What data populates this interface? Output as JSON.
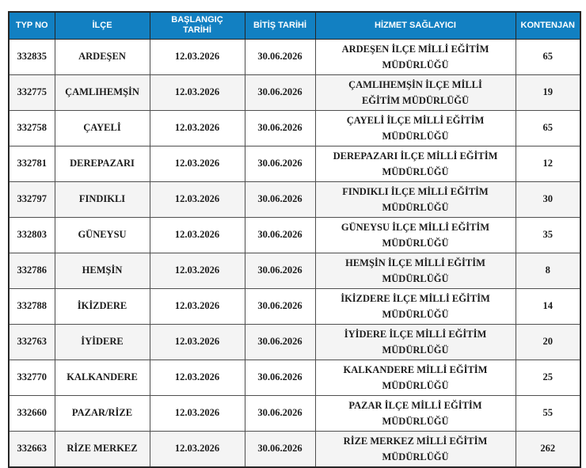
{
  "header": {
    "columns": [
      "TYP NO",
      "İLÇE",
      "BAŞLANGIÇ TARİHİ",
      "BİTİŞ TARİHİ",
      "HİZMET SAĞLAYICI",
      "KONTENJAN"
    ]
  },
  "rows": [
    {
      "typ_no": "332835",
      "ilce": "ARDEŞEN",
      "baslangic": "12.03.2026",
      "bitis": "30.06.2026",
      "saglayici": "ARDEŞEN İLÇE MİLLİ EĞİTİM MÜDÜRLÜĞÜ",
      "kontenjan": "65",
      "shaded": false
    },
    {
      "typ_no": "332775",
      "ilce": "ÇAMLIHEMŞİN",
      "baslangic": "12.03.2026",
      "bitis": "30.06.2026",
      "saglayici": "ÇAMLIHEMŞİN İLÇE MİLLİ EĞİTİM MÜDÜRLÜĞÜ",
      "kontenjan": "19",
      "shaded": true
    },
    {
      "typ_no": "332758",
      "ilce": "ÇAYELİ",
      "baslangic": "12.03.2026",
      "bitis": "30.06.2026",
      "saglayici": "ÇAYELİ İLÇE MİLLİ EĞİTİM MÜDÜRLÜĞÜ",
      "kontenjan": "65",
      "shaded": false
    },
    {
      "typ_no": "332781",
      "ilce": "DEREPAZARI",
      "baslangic": "12.03.2026",
      "bitis": "30.06.2026",
      "saglayici": "DEREPAZARI İLÇE MİLLİ EĞİTİM MÜDÜRLÜĞÜ",
      "kontenjan": "12",
      "shaded": false
    },
    {
      "typ_no": "332797",
      "ilce": "FINDIKLI",
      "baslangic": "12.03.2026",
      "bitis": "30.06.2026",
      "saglayici": "FINDIKLI İLÇE MİLLİ EĞİTİM MÜDÜRLÜĞÜ",
      "kontenjan": "30",
      "shaded": true
    },
    {
      "typ_no": "332803",
      "ilce": "GÜNEYSU",
      "baslangic": "12.03.2026",
      "bitis": "30.06.2026",
      "saglayici": "GÜNEYSU İLÇE MİLLİ EĞİTİM MÜDÜRLÜĞÜ",
      "kontenjan": "35",
      "shaded": false
    },
    {
      "typ_no": "332786",
      "ilce": "HEMŞİN",
      "baslangic": "12.03.2026",
      "bitis": "30.06.2026",
      "saglayici": "HEMŞİN İLÇE MİLLİ EĞİTİM MÜDÜRLÜĞÜ",
      "kontenjan": "8",
      "shaded": true
    },
    {
      "typ_no": "332788",
      "ilce": "İKİZDERE",
      "baslangic": "12.03.2026",
      "bitis": "30.06.2026",
      "saglayici": "İKİZDERE İLÇE MİLLİ EĞİTİM MÜDÜRLÜĞÜ",
      "kontenjan": "14",
      "shaded": false
    },
    {
      "typ_no": "332763",
      "ilce": "İYİDERE",
      "baslangic": "12.03.2026",
      "bitis": "30.06.2026",
      "saglayici": "İYİDERE İLÇE MİLLİ EĞİTİM MÜDÜRLÜĞÜ",
      "kontenjan": "20",
      "shaded": true
    },
    {
      "typ_no": "332770",
      "ilce": "KALKANDERE",
      "baslangic": "12.03.2026",
      "bitis": "30.06.2026",
      "saglayici": "KALKANDERE MİLLİ EĞİTİM MÜDÜRLÜĞÜ",
      "kontenjan": "25",
      "shaded": false
    },
    {
      "typ_no": "332660",
      "ilce": "PAZAR/RİZE",
      "baslangic": "12.03.2026",
      "bitis": "30.06.2026",
      "saglayici": "PAZAR İLÇE MİLLİ EĞİTİM MÜDÜRLÜĞÜ",
      "kontenjan": "55",
      "shaded": false
    },
    {
      "typ_no": "332663",
      "ilce": "RİZE MERKEZ",
      "baslangic": "12.03.2026",
      "bitis": "30.06.2026",
      "saglayici": "RİZE MERKEZ MİLLİ EĞİTİM MÜDÜRLÜĞÜ",
      "kontenjan": "262",
      "shaded": true
    }
  ],
  "colors": {
    "header_bg": "#1280c2",
    "header_text": "#ffffff",
    "row_shade": "#f4f4f4",
    "border_inner": "#4f4f4f",
    "border_outer": "#262626",
    "body_text": "#1c1c1c"
  }
}
